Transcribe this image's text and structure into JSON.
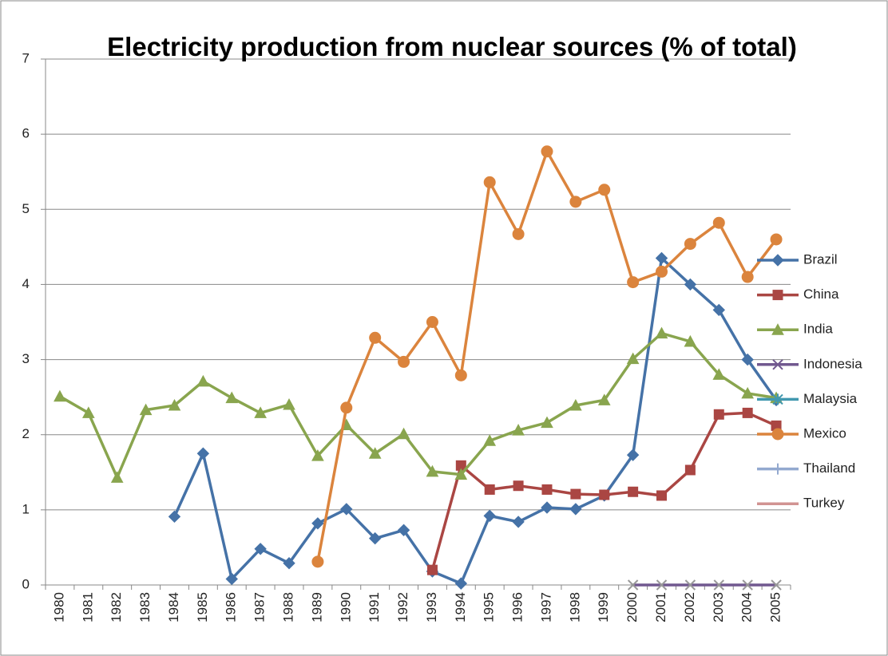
{
  "chart_data": {
    "type": "line",
    "title": "Electricity production from nuclear sources (% of total)",
    "categories": [
      "1980",
      "1981",
      "1982",
      "1983",
      "1984",
      "1985",
      "1986",
      "1987",
      "1988",
      "1989",
      "1990",
      "1991",
      "1992",
      "1993",
      "1994",
      "1995",
      "1996",
      "1997",
      "1998",
      "1999",
      "2000",
      "2001",
      "2002",
      "2003",
      "2004",
      "2005"
    ],
    "ylim": [
      0,
      7
    ],
    "yticks": [
      0,
      1,
      2,
      3,
      4,
      5,
      6,
      7
    ],
    "grid": true,
    "legend": "right",
    "series": [
      {
        "name": "Brazil",
        "color": "#4572a7",
        "marker": "diamond",
        "values": [
          null,
          null,
          null,
          null,
          0.91,
          1.75,
          0.08,
          0.48,
          0.29,
          0.82,
          1.01,
          0.62,
          0.73,
          0.18,
          0.02,
          0.92,
          0.84,
          1.03,
          1.01,
          1.19,
          1.73,
          4.35,
          4.0,
          3.66,
          3.0,
          2.46
        ]
      },
      {
        "name": "China",
        "color": "#aa4643",
        "marker": "square",
        "values": [
          null,
          null,
          null,
          null,
          null,
          null,
          null,
          null,
          null,
          null,
          null,
          null,
          null,
          0.2,
          1.59,
          1.27,
          1.32,
          1.27,
          1.21,
          1.2,
          1.24,
          1.19,
          1.53,
          2.27,
          2.29,
          2.12
        ]
      },
      {
        "name": "India",
        "color": "#89a54e",
        "marker": "triangle",
        "values": [
          2.51,
          2.29,
          1.43,
          2.33,
          2.39,
          2.71,
          2.49,
          2.29,
          2.4,
          1.72,
          2.13,
          1.75,
          2.01,
          1.51,
          1.47,
          1.92,
          2.06,
          2.16,
          2.39,
          2.46,
          3.01,
          3.35,
          3.24,
          2.8,
          2.55,
          2.49
        ]
      },
      {
        "name": "Indonesia",
        "color": "#71588f",
        "marker": "x",
        "values": [
          null,
          null,
          null,
          null,
          null,
          null,
          null,
          null,
          null,
          null,
          null,
          null,
          null,
          null,
          null,
          null,
          null,
          null,
          null,
          null,
          0,
          0,
          0,
          0,
          0,
          0
        ]
      },
      {
        "name": "Malaysia",
        "color": "#4198af",
        "marker": "star",
        "values": [
          null,
          null,
          null,
          null,
          null,
          null,
          null,
          null,
          null,
          null,
          null,
          null,
          null,
          null,
          null,
          null,
          null,
          null,
          null,
          null,
          null,
          null,
          null,
          null,
          null,
          null
        ]
      },
      {
        "name": "Mexico",
        "color": "#db843d",
        "marker": "circle",
        "values": [
          null,
          null,
          null,
          null,
          null,
          null,
          null,
          null,
          null,
          0.31,
          2.36,
          3.29,
          2.97,
          3.5,
          2.79,
          5.36,
          4.67,
          5.77,
          5.1,
          5.26,
          4.03,
          4.17,
          4.54,
          4.82,
          4.1,
          4.6
        ]
      },
      {
        "name": "Thailand",
        "color": "#93a9cf",
        "marker": "plus",
        "values": [
          null,
          null,
          null,
          null,
          null,
          null,
          null,
          null,
          null,
          null,
          null,
          null,
          null,
          null,
          null,
          null,
          null,
          null,
          null,
          null,
          null,
          null,
          null,
          null,
          null,
          null
        ]
      },
      {
        "name": "Turkey",
        "color": "#d19392",
        "marker": "none",
        "values": [
          null,
          null,
          null,
          null,
          null,
          null,
          null,
          null,
          null,
          null,
          null,
          null,
          null,
          null,
          null,
          null,
          null,
          null,
          null,
          null,
          null,
          null,
          null,
          null,
          null,
          null
        ]
      }
    ]
  }
}
